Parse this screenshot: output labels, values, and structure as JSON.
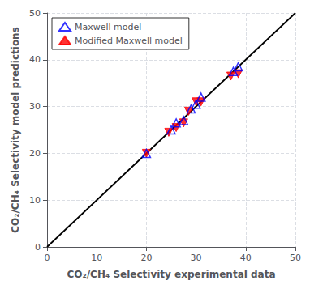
{
  "chart_data": {
    "type": "scatter",
    "xlabel": "CO₂/CH₄ Selectivity experimental data",
    "ylabel": "CO₂/CH₄ Selectivity model predictions",
    "xlim": [
      0,
      50
    ],
    "ylim": [
      0,
      50
    ],
    "xticks": [
      0,
      10,
      20,
      30,
      40,
      50
    ],
    "yticks": [
      0,
      10,
      20,
      30,
      40,
      50
    ],
    "grid": true,
    "legend": "upper left",
    "series": [
      {
        "name": "Maxwell model",
        "type": "scatter",
        "marker": "triangle-up-open",
        "color": "#0000ff",
        "x": [
          20.0,
          25.0,
          26.0,
          27.5,
          29.0,
          30.0,
          31.0,
          37.5,
          38.5
        ],
        "values": [
          20.0,
          25.0,
          26.5,
          27.0,
          29.5,
          30.5,
          32.0,
          37.5,
          38.5
        ]
      },
      {
        "name": "Modified Maxwell model",
        "type": "scatter",
        "marker": "triangle-down",
        "color": "#ff0000",
        "x": [
          20.0,
          24.5,
          26.0,
          27.5,
          28.5,
          30.0,
          31.0,
          37.0,
          38.5
        ],
        "values": [
          20.0,
          24.5,
          25.5,
          26.5,
          29.0,
          31.0,
          31.0,
          36.5,
          37.0
        ]
      },
      {
        "type": "line",
        "line_style": "solid",
        "color": "#000000",
        "x": [
          0,
          50
        ],
        "values": [
          0,
          50
        ]
      }
    ]
  }
}
